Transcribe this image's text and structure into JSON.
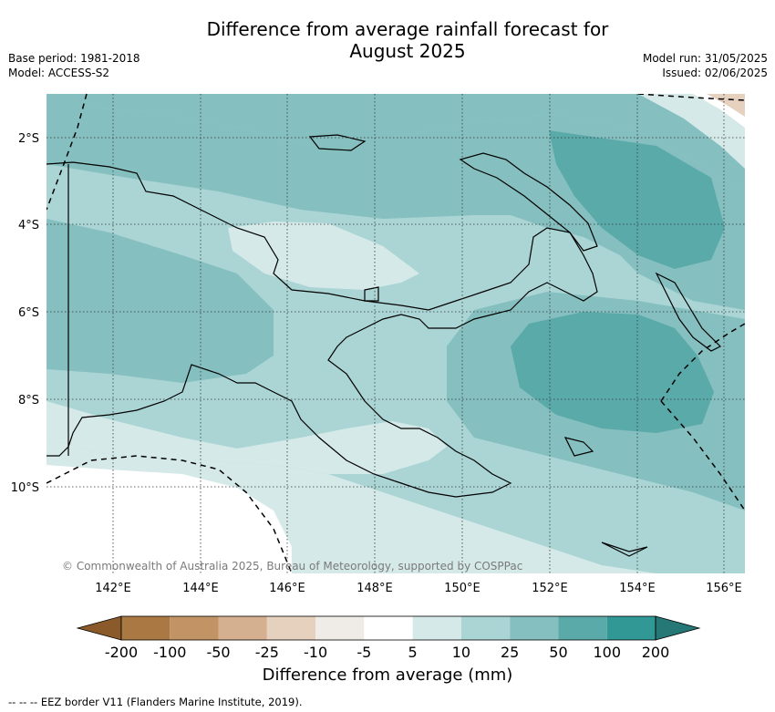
{
  "title_line1": "Difference from average rainfall forecast for",
  "title_line2": "August 2025",
  "meta_left": [
    "Base period: 1981-2018",
    "Model: ACCESS-S2"
  ],
  "meta_right": [
    "Model run: 31/05/2025",
    "Issued: 02/06/2025"
  ],
  "copyright": "© Commonwealth of Australia 2025, Bureau of Meteorology, supported by COSPPac",
  "footer": "-- -- -- EEZ border V11 (Flanders Marine Institute, 2019).",
  "map": {
    "lon_labels": [
      "142°E",
      "144°E",
      "146°E",
      "148°E",
      "150°E",
      "152°E",
      "154°E",
      "156°E"
    ],
    "lat_labels": [
      "2°S",
      "4°S",
      "6°S",
      "8°S",
      "10°S"
    ],
    "gridlines": true
  },
  "colorbar": {
    "label": "Difference from average (mm)",
    "ticks": [
      "-200",
      "-100",
      "-50",
      "-25",
      "-10",
      "-5",
      "5",
      "10",
      "25",
      "50",
      "100",
      "200"
    ],
    "colors": [
      "#8b5a2b",
      "#a97843",
      "#c29465",
      "#d4b091",
      "#e6d1bf",
      "#efebe7",
      "#ffffff",
      "#d5e9e8",
      "#abd5d5",
      "#85bfbf",
      "#5aaaa9",
      "#319895",
      "#267876"
    ]
  }
}
